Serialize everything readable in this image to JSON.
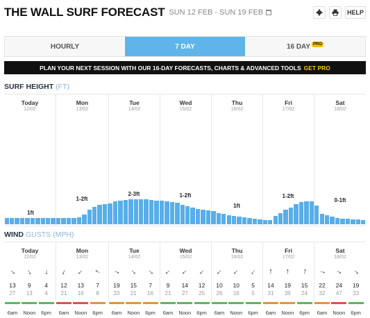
{
  "header": {
    "title": "THE WALL SURF FORECAST",
    "dates": "SUN 12 FEB - SUN 19 FEB",
    "settings_icon": "gear-icon",
    "print_icon": "printer-icon",
    "help_label": "HELP"
  },
  "tabs": [
    {
      "label": "HOURLY"
    },
    {
      "label": "7 DAY",
      "active": true
    },
    {
      "label": "16 DAY",
      "badge": "PRO"
    }
  ],
  "banner": {
    "text": "PLAN YOUR NEXT SESSION WITH OUR 16-DAY FORECASTS, CHARTS & ADVANCED TOOLS",
    "cta": "GET PRO"
  },
  "surf": {
    "title": "SURF HEIGHT",
    "unit": "(FT)"
  },
  "wind": {
    "title": "WIND",
    "unit": "GUSTS (MPH)"
  },
  "days": [
    {
      "name": "Today",
      "date": "12/02",
      "height_label": "1ft"
    },
    {
      "name": "Mon",
      "date": "13/02",
      "height_label": "1-2ft"
    },
    {
      "name": "Tue",
      "date": "14/02",
      "height_label": "2-3ft"
    },
    {
      "name": "Wed",
      "date": "15/02",
      "height_label": "1-2ft"
    },
    {
      "name": "Thu",
      "date": "16/02",
      "height_label": "1ft"
    },
    {
      "name": "Fri",
      "date": "17/02",
      "height_label": "1-2ft"
    },
    {
      "name": "Sat",
      "date": "18/02",
      "height_label": "0-1ft"
    }
  ],
  "surf_bars": [
    0.9,
    0.9,
    0.9,
    0.9,
    0.9,
    0.9,
    0.9,
    0.9,
    0.9,
    0.9,
    0.9,
    0.9,
    0.9,
    0.9,
    1.0,
    1.4,
    2.0,
    2.4,
    2.7,
    2.8,
    2.9,
    3.2,
    3.3,
    3.4,
    3.5,
    3.5,
    3.5,
    3.5,
    3.4,
    3.3,
    3.3,
    3.2,
    3.1,
    3.0,
    2.7,
    2.5,
    2.3,
    2.1,
    2.0,
    1.9,
    1.8,
    1.6,
    1.5,
    1.3,
    1.2,
    1.1,
    1.0,
    0.9,
    0.8,
    0.7,
    0.6,
    0.6,
    1.2,
    1.6,
    2.0,
    2.3,
    2.8,
    3.1,
    3.2,
    3.2,
    2.6,
    1.5,
    1.3,
    1.1,
    0.9,
    0.8,
    0.8,
    0.7,
    0.7,
    0.6
  ],
  "wind_cells": [
    {
      "time": "6am",
      "speed": "13",
      "gust": "27",
      "dir": 135,
      "color": "#5cb85c"
    },
    {
      "time": "Noon",
      "speed": "9",
      "gust": "13",
      "dir": 150,
      "color": "#5cb85c"
    },
    {
      "time": "6pm",
      "speed": "4",
      "gust": "4",
      "dir": 180,
      "color": "#5cb85c"
    },
    {
      "time": "6am",
      "speed": "12",
      "gust": "21",
      "dir": 200,
      "color": "#d9534f"
    },
    {
      "time": "Noon",
      "speed": "13",
      "gust": "16",
      "dir": 225,
      "color": "#d9534f"
    },
    {
      "time": "6pm",
      "speed": "7",
      "gust": "8",
      "dir": 300,
      "color": "#e8913a"
    },
    {
      "time": "6am",
      "speed": "19",
      "gust": "33",
      "dir": 120,
      "color": "#e8913a"
    },
    {
      "time": "Noon",
      "speed": "15",
      "gust": "21",
      "dir": 135,
      "color": "#e8913a"
    },
    {
      "time": "6pm",
      "speed": "7",
      "gust": "16",
      "dir": 135,
      "color": "#e8913a"
    },
    {
      "time": "6am",
      "speed": "9",
      "gust": "21",
      "dir": 230,
      "color": "#5cb85c"
    },
    {
      "time": "Noon",
      "speed": "14",
      "gust": "27",
      "dir": 230,
      "color": "#5cb85c"
    },
    {
      "time": "6pm",
      "speed": "12",
      "gust": "25",
      "dir": 225,
      "color": "#5cb85c"
    },
    {
      "time": "6am",
      "speed": "10",
      "gust": "26",
      "dir": 225,
      "color": "#5cb85c"
    },
    {
      "time": "Noon",
      "speed": "10",
      "gust": "16",
      "dir": 225,
      "color": "#5cb85c"
    },
    {
      "time": "6pm",
      "speed": "5",
      "gust": "5",
      "dir": 215,
      "color": "#5cb85c"
    },
    {
      "time": "6am",
      "speed": "14",
      "gust": "31",
      "dir": 0,
      "color": "#e8913a"
    },
    {
      "time": "Noon",
      "speed": "19",
      "gust": "39",
      "dir": 0,
      "color": "#e8913a"
    },
    {
      "time": "6pm",
      "speed": "15",
      "gust": "24",
      "dir": 10,
      "color": "#5cb85c"
    },
    {
      "time": "6am",
      "speed": "22",
      "gust": "32",
      "dir": 105,
      "color": "#e8913a"
    },
    {
      "time": "Noon",
      "speed": "24",
      "gust": "47",
      "dir": 120,
      "color": "#d9534f"
    },
    {
      "time": "6pm",
      "speed": "19",
      "gust": "33",
      "dir": 135,
      "color": "#5cb85c"
    }
  ]
}
